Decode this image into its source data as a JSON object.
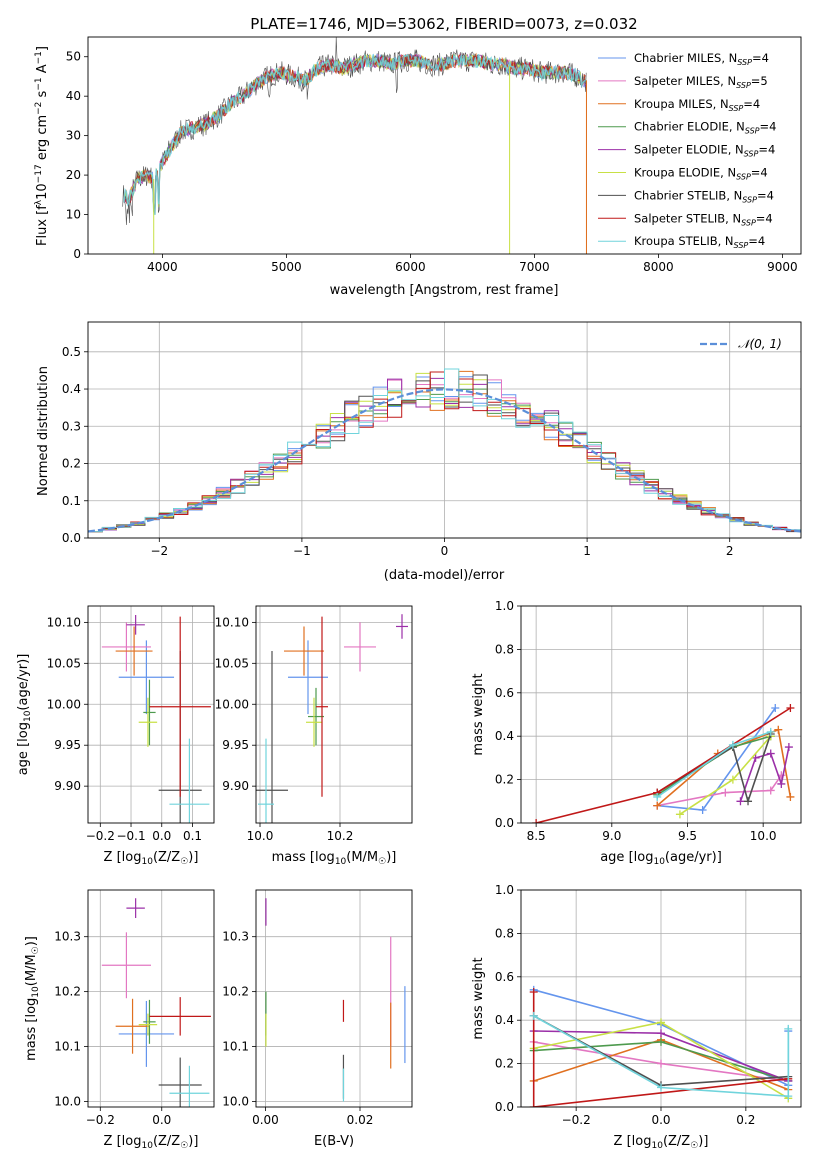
{
  "figure": {
    "title": "PLATE=1746, MJD=53062, FIBERID=0073, z=0.032"
  },
  "colors": {
    "Chabrier MILES": "#6495ED",
    "Salpeter MILES": "#E377C2",
    "Kroupa MILES": "#E07020",
    "Chabrier ELODIE": "#4E9A4E",
    "Salpeter ELODIE": "#9B30A8",
    "Kroupa ELODIE": "#C8E045",
    "Chabrier STELIB": "#505050",
    "Salpeter STELIB": "#C01818",
    "Kroupa STELIB": "#70D4DC"
  },
  "legend": [
    {
      "name": "Chabrier MILES",
      "label": "Chabrier MILES, N",
      "sub": "SSP",
      "val": "=4"
    },
    {
      "name": "Salpeter MILES",
      "label": "Salpeter MILES, N",
      "sub": "SSP",
      "val": "=5"
    },
    {
      "name": "Kroupa MILES",
      "label": "Kroupa MILES, N",
      "sub": "SSP",
      "val": "=4"
    },
    {
      "name": "Chabrier ELODIE",
      "label": "Chabrier ELODIE, N",
      "sub": "SSP",
      "val": "=4"
    },
    {
      "name": "Salpeter ELODIE",
      "label": "Salpeter ELODIE, N",
      "sub": "SSP",
      "val": "=4"
    },
    {
      "name": "Kroupa ELODIE",
      "label": "Kroupa ELODIE, N",
      "sub": "SSP",
      "val": "=4"
    },
    {
      "name": "Chabrier STELIB",
      "label": "Chabrier STELIB, N",
      "sub": "SSP",
      "val": "=4"
    },
    {
      "name": "Salpeter STELIB",
      "label": "Salpeter STELIB, N",
      "sub": "SSP",
      "val": "=4"
    },
    {
      "name": "Kroupa STELIB",
      "label": "Kroupa STELIB, N",
      "sub": "SSP",
      "val": "=4"
    }
  ],
  "chart_data": [
    {
      "id": "spectrum",
      "type": "line",
      "xlabel": "wavelength [Angstrom, rest frame]",
      "ylabel_parts": [
        "Flux [f",
        "λ",
        "10",
        "−17",
        " erg cm",
        "−2",
        " s",
        "−1",
        " A",
        "−1",
        "]"
      ],
      "xlim": [
        3400,
        9150
      ],
      "ylim": [
        0,
        55
      ],
      "xticks": [
        4000,
        5000,
        6000,
        7000,
        8000,
        9000
      ],
      "yticks": [
        0,
        10,
        20,
        30,
        40,
        50
      ],
      "continuum": [
        [
          3680,
          15
        ],
        [
          3730,
          14
        ],
        [
          3800,
          19
        ],
        [
          3880,
          20
        ],
        [
          3930,
          19
        ],
        [
          3980,
          22
        ],
        [
          4050,
          26
        ],
        [
          4150,
          31
        ],
        [
          4250,
          32
        ],
        [
          4350,
          33
        ],
        [
          4450,
          35
        ],
        [
          4550,
          38
        ],
        [
          4650,
          40
        ],
        [
          4750,
          43
        ],
        [
          4850,
          45
        ],
        [
          4950,
          46
        ],
        [
          5050,
          45
        ],
        [
          5150,
          44
        ],
        [
          5250,
          47
        ],
        [
          5350,
          48
        ],
        [
          5450,
          47
        ],
        [
          5550,
          48
        ],
        [
          5650,
          49
        ],
        [
          5750,
          49
        ],
        [
          5850,
          48
        ],
        [
          5950,
          49
        ],
        [
          6050,
          49
        ],
        [
          6150,
          48
        ],
        [
          6250,
          48
        ],
        [
          6350,
          49
        ],
        [
          6450,
          49
        ],
        [
          6550,
          49
        ],
        [
          6650,
          48
        ],
        [
          6750,
          48
        ],
        [
          6850,
          47
        ],
        [
          6950,
          47
        ],
        [
          7050,
          46
        ],
        [
          7150,
          46
        ],
        [
          7250,
          46
        ],
        [
          7350,
          45
        ],
        [
          7400,
          44
        ]
      ],
      "model_end_wavelength": 7420,
      "model_end_drops": [
        {
          "model": "Kroupa ELODIE",
          "wavelength": 6800
        },
        {
          "model": "Kroupa MILES",
          "wavelength": 7420
        },
        {
          "model": "Kroupa ELODIE",
          "wavelength": 3930
        }
      ]
    },
    {
      "id": "residuals",
      "type": "histogram",
      "xlabel": "(data-model)/error",
      "ylabel": "Normed distribution",
      "xlim": [
        -2.5,
        2.5
      ],
      "ylim": [
        0,
        0.58
      ],
      "xticks": [
        -2,
        -1,
        0,
        1,
        2
      ],
      "yticks": [
        0.0,
        0.1,
        0.2,
        0.3,
        0.4,
        0.5
      ],
      "reference_label": "𝒩(0, 1)",
      "reference_color": "#5B8FD9"
    },
    {
      "id": "age_vs_Z",
      "type": "errorbar",
      "xlabel": "Z [log10(Z/Z☉)]",
      "xlabel_parts": [
        "Z [log",
        "10",
        "(Z/Z",
        "☉",
        ")]"
      ],
      "ylabel_parts": [
        "age  [log",
        "10",
        "(age/yr)]"
      ],
      "xlim": [
        -0.24,
        0.17
      ],
      "ylim": [
        9.855,
        10.12
      ],
      "xticks": [
        -0.2,
        -0.1,
        0.0,
        0.1
      ],
      "xticklabels": [
        "−0.2",
        "−0.1",
        "0.0",
        "0.1"
      ],
      "yticks": [
        9.9,
        9.95,
        10.0,
        10.05,
        10.1
      ],
      "points": [
        {
          "model": "Chabrier MILES",
          "x": -0.05,
          "xerr": 0.09,
          "y": 10.033,
          "yerr": 0.045
        },
        {
          "model": "Salpeter MILES",
          "x": -0.115,
          "xerr": 0.08,
          "y": 10.07,
          "yerr": 0.03
        },
        {
          "model": "Kroupa MILES",
          "x": -0.09,
          "xerr": 0.06,
          "y": 10.065,
          "yerr": 0.03
        },
        {
          "model": "Chabrier ELODIE",
          "x": -0.04,
          "xerr": 0.02,
          "y": 9.99,
          "yerr": 0.04
        },
        {
          "model": "Salpeter ELODIE",
          "x": -0.085,
          "xerr": 0.03,
          "y": 10.097,
          "yerr": 0.012
        },
        {
          "model": "Kroupa ELODIE",
          "x": -0.045,
          "xerr": 0.03,
          "y": 9.978,
          "yerr": 0.03
        },
        {
          "model": "Chabrier STELIB",
          "x": 0.06,
          "xerr": 0.07,
          "y": 9.895,
          "yerr": 0.17
        },
        {
          "model": "Salpeter STELIB",
          "x": 0.06,
          "xerr": 0.1,
          "y": 9.997,
          "yerr": 0.11
        },
        {
          "model": "Kroupa STELIB",
          "x": 0.09,
          "xerr": 0.065,
          "y": 9.878,
          "yerr": 0.08
        }
      ]
    },
    {
      "id": "age_vs_mass",
      "type": "errorbar",
      "xlabel_parts": [
        "mass [log",
        "10",
        "(M/M",
        "☉",
        ")]"
      ],
      "xlim": [
        9.99,
        10.38
      ],
      "ylim": [
        9.855,
        10.12
      ],
      "xticks": [
        10.0,
        10.2
      ],
      "yticks": [
        9.9,
        9.95,
        10.0,
        10.05,
        10.1
      ],
      "points": [
        {
          "model": "Chabrier MILES",
          "x": 10.12,
          "xerr": 0.05,
          "y": 10.033,
          "yerr": 0.045
        },
        {
          "model": "Salpeter MILES",
          "x": 10.25,
          "xerr": 0.04,
          "y": 10.07,
          "yerr": 0.03
        },
        {
          "model": "Kroupa MILES",
          "x": 10.11,
          "xerr": 0.05,
          "y": 10.065,
          "yerr": 0.03
        },
        {
          "model": "Chabrier ELODIE",
          "x": 10.14,
          "xerr": 0.02,
          "y": 9.985,
          "yerr": 0.035
        },
        {
          "model": "Salpeter ELODIE",
          "x": 10.355,
          "xerr": 0.015,
          "y": 10.095,
          "yerr": 0.015
        },
        {
          "model": "Kroupa ELODIE",
          "x": 10.135,
          "xerr": 0.02,
          "y": 9.978,
          "yerr": 0.03
        },
        {
          "model": "Chabrier STELIB",
          "x": 10.03,
          "xerr": 0.04,
          "y": 9.895,
          "yerr": 0.17
        },
        {
          "model": "Salpeter STELIB",
          "x": 10.155,
          "xerr": 0.015,
          "y": 9.997,
          "yerr": 0.11
        },
        {
          "model": "Kroupa STELIB",
          "x": 10.015,
          "xerr": 0.02,
          "y": 9.878,
          "yerr": 0.08
        }
      ]
    },
    {
      "id": "massweight_vs_age",
      "type": "line",
      "xlabel_parts": [
        "age  [log",
        "10",
        "(age/yr)]"
      ],
      "ylabel": "mass weight",
      "xlim": [
        8.4,
        10.25
      ],
      "ylim": [
        0,
        1.0
      ],
      "xticks": [
        8.5,
        9.0,
        9.5,
        10.0
      ],
      "yticks": [
        0.0,
        0.2,
        0.4,
        0.6,
        0.8,
        1.0
      ],
      "series": [
        {
          "model": "Chabrier MILES",
          "x": [
            9.3,
            9.6,
            10.08
          ],
          "y": [
            0.08,
            0.06,
            0.53
          ]
        },
        {
          "model": "Salpeter MILES",
          "x": [
            9.3,
            9.75,
            10.05,
            10.12
          ],
          "y": [
            0.08,
            0.14,
            0.15,
            0.22
          ]
        },
        {
          "model": "Kroupa MILES",
          "x": [
            9.3,
            9.7,
            10.1,
            10.18
          ],
          "y": [
            0.08,
            0.32,
            0.43,
            0.12
          ]
        },
        {
          "model": "Chabrier ELODIE",
          "x": [
            9.3,
            9.8,
            10.05
          ],
          "y": [
            0.13,
            0.35,
            0.4
          ]
        },
        {
          "model": "Salpeter ELODIE",
          "x": [
            9.85,
            9.95,
            10.05,
            10.12,
            10.17
          ],
          "y": [
            0.1,
            0.3,
            0.32,
            0.18,
            0.35
          ]
        },
        {
          "model": "Kroupa ELODIE",
          "x": [
            9.45,
            9.8,
            10.05
          ],
          "y": [
            0.04,
            0.2,
            0.4
          ]
        },
        {
          "model": "Chabrier STELIB",
          "x": [
            9.3,
            9.8,
            9.9,
            10.05
          ],
          "y": [
            0.14,
            0.35,
            0.1,
            0.41
          ]
        },
        {
          "model": "Salpeter STELIB",
          "x": [
            8.5,
            9.3,
            10.18
          ],
          "y": [
            0.0,
            0.14,
            0.53
          ]
        },
        {
          "model": "Kroupa STELIB",
          "x": [
            9.3,
            9.8,
            10.05
          ],
          "y": [
            0.12,
            0.36,
            0.42
          ]
        }
      ]
    },
    {
      "id": "mass_vs_Z",
      "type": "errorbar",
      "xlabel_parts": [
        "Z [log",
        "10",
        "(Z/Z",
        "☉",
        ")]"
      ],
      "ylabel_parts": [
        "mass [log",
        "10",
        "(M/M",
        "☉",
        ")]"
      ],
      "xlim": [
        -0.24,
        0.17
      ],
      "ylim": [
        9.99,
        10.385
      ],
      "xticks": [
        -0.2,
        0.0
      ],
      "xticklabels": [
        "−0.2",
        "0.0"
      ],
      "yticks": [
        10.0,
        10.1,
        10.2,
        10.3
      ],
      "points": [
        {
          "model": "Chabrier MILES",
          "x": -0.05,
          "xerr": 0.09,
          "y": 10.123,
          "yerr": 0.06
        },
        {
          "model": "Salpeter MILES",
          "x": -0.115,
          "xerr": 0.08,
          "y": 10.248,
          "yerr": 0.06
        },
        {
          "model": "Kroupa MILES",
          "x": -0.095,
          "xerr": 0.055,
          "y": 10.137,
          "yerr": 0.05
        },
        {
          "model": "Chabrier ELODIE",
          "x": -0.04,
          "xerr": 0.02,
          "y": 10.145,
          "yerr": 0.04
        },
        {
          "model": "Salpeter ELODIE",
          "x": -0.085,
          "xerr": 0.03,
          "y": 10.352,
          "yerr": 0.018
        },
        {
          "model": "Kroupa ELODIE",
          "x": -0.045,
          "xerr": 0.03,
          "y": 10.14,
          "yerr": 0.02
        },
        {
          "model": "Chabrier STELIB",
          "x": 0.06,
          "xerr": 0.07,
          "y": 10.03,
          "yerr": 0.05
        },
        {
          "model": "Salpeter STELIB",
          "x": 0.06,
          "xerr": 0.1,
          "y": 10.155,
          "yerr": 0.035
        },
        {
          "model": "Kroupa STELIB",
          "x": 0.09,
          "xerr": 0.065,
          "y": 10.015,
          "yerr": 0.05
        }
      ]
    },
    {
      "id": "mass_vs_ebv",
      "type": "errorbar",
      "xlabel": "E(B-V)",
      "xlim": [
        -0.002,
        0.031
      ],
      "ylim": [
        9.99,
        10.385
      ],
      "xticks": [
        0.0,
        0.02
      ],
      "xticklabels": [
        "0.00",
        "0.02"
      ],
      "yticks": [
        10.0,
        10.1,
        10.2,
        10.3
      ],
      "points": [
        {
          "model": "Chabrier MILES",
          "x": 0.0295,
          "xerr": 0,
          "y": 10.14,
          "yerr": 0.07
        },
        {
          "model": "Salpeter MILES",
          "x": 0.0265,
          "xerr": 0,
          "y": 10.2,
          "yerr": 0.1
        },
        {
          "model": "Kroupa MILES",
          "x": 0.0265,
          "xerr": 0,
          "y": 10.12,
          "yerr": 0.06
        },
        {
          "model": "Chabrier ELODIE",
          "x": 0.0001,
          "xerr": 0,
          "y": 10.16,
          "yerr": 0.04
        },
        {
          "model": "Salpeter ELODIE",
          "x": 0.0001,
          "xerr": 0,
          "y": 10.345,
          "yerr": 0.025
        },
        {
          "model": "Kroupa ELODIE",
          "x": 0.0001,
          "xerr": 0,
          "y": 10.13,
          "yerr": 0.03
        },
        {
          "model": "Chabrier STELIB",
          "x": 0.0165,
          "xerr": 0,
          "y": 10.045,
          "yerr": 0.04
        },
        {
          "model": "Salpeter STELIB",
          "x": 0.0165,
          "xerr": 0,
          "y": 10.165,
          "yerr": 0.02
        },
        {
          "model": "Kroupa STELIB",
          "x": 0.0165,
          "xerr": 0,
          "y": 10.03,
          "yerr": 0.03
        }
      ]
    },
    {
      "id": "massweight_vs_Z",
      "type": "line",
      "xlabel_parts": [
        "Z [log",
        "10",
        "(Z/Z",
        "☉",
        ")]"
      ],
      "ylabel": "mass weight",
      "xlim": [
        -0.33,
        0.33
      ],
      "ylim": [
        0,
        1.0
      ],
      "xticks": [
        -0.2,
        0.0,
        0.2
      ],
      "xticklabels": [
        "−0.2",
        "0.0",
        "0.2"
      ],
      "yticks": [
        0.0,
        0.2,
        0.4,
        0.6,
        0.8,
        1.0
      ],
      "series": [
        {
          "model": "Chabrier MILES",
          "x": [
            -0.3,
            0.0,
            0.3,
            0.3
          ],
          "y": [
            0.54,
            0.38,
            0.1,
            0.35
          ]
        },
        {
          "model": "Salpeter MILES",
          "x": [
            -0.3,
            0.0,
            0.3
          ],
          "y": [
            0.3,
            0.2,
            0.12
          ]
        },
        {
          "model": "Kroupa MILES",
          "x": [
            -0.3,
            0.0,
            0.3
          ],
          "y": [
            0.12,
            0.31,
            0.08
          ]
        },
        {
          "model": "Chabrier ELODIE",
          "x": [
            -0.3,
            0.0,
            0.3
          ],
          "y": [
            0.26,
            0.3,
            0.12
          ]
        },
        {
          "model": "Salpeter ELODIE",
          "x": [
            -0.3,
            0.0,
            0.3
          ],
          "y": [
            0.35,
            0.34,
            0.12
          ]
        },
        {
          "model": "Kroupa ELODIE",
          "x": [
            -0.3,
            0.0,
            0.3
          ],
          "y": [
            0.27,
            0.39,
            0.04
          ]
        },
        {
          "model": "Chabrier STELIB",
          "x": [
            -0.3,
            0.0,
            0.3
          ],
          "y": [
            0.42,
            0.1,
            0.14
          ]
        },
        {
          "model": "Salpeter STELIB",
          "x": [
            -0.3,
            -0.3,
            0.3
          ],
          "y": [
            0.53,
            0.0,
            0.13
          ]
        },
        {
          "model": "Kroupa STELIB",
          "x": [
            -0.3,
            0.0,
            0.3,
            0.3
          ],
          "y": [
            0.42,
            0.09,
            0.05,
            0.36
          ]
        }
      ]
    }
  ]
}
